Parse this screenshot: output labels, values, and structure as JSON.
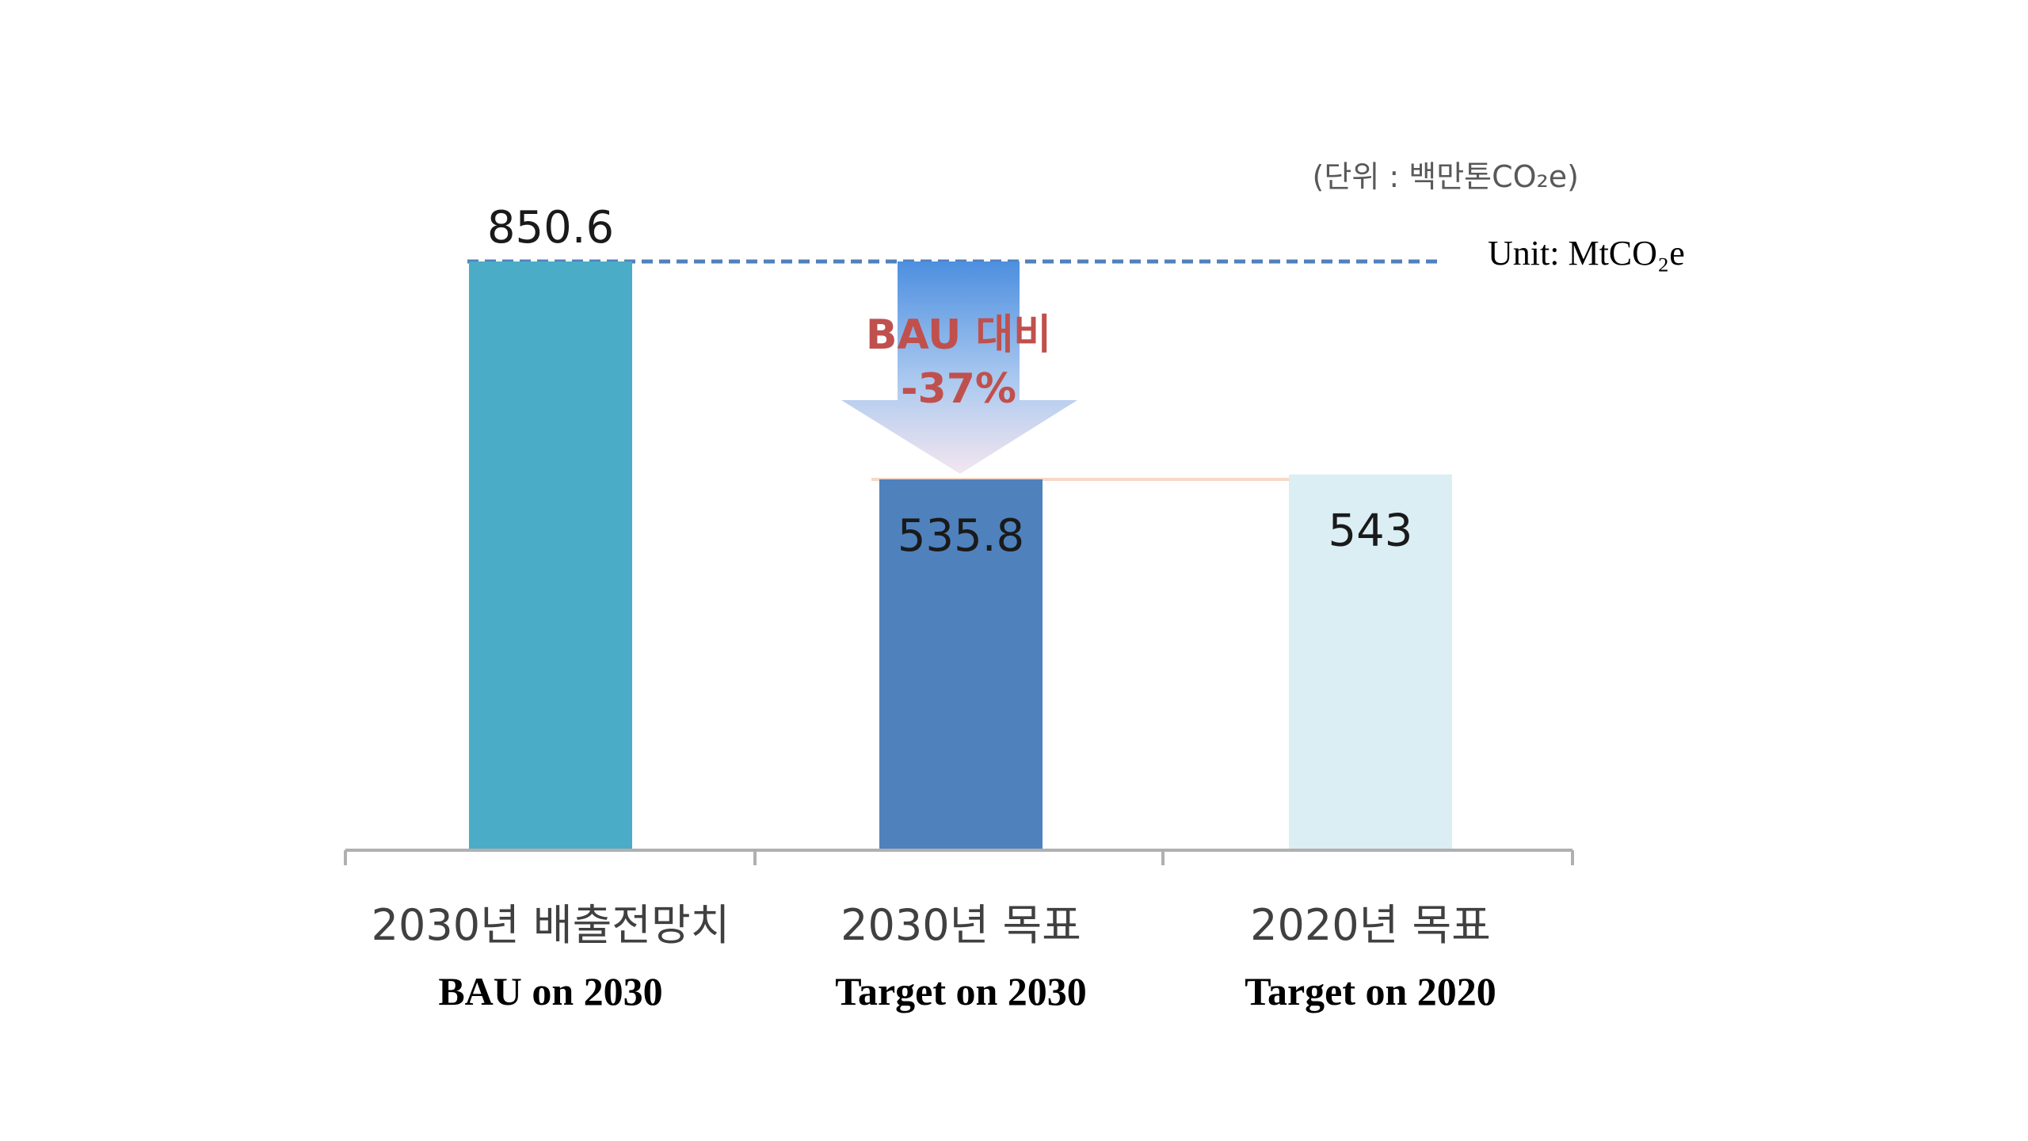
{
  "chart_data": {
    "type": "bar",
    "categories": [
      {
        "label_kr": "2030년 배출전망치",
        "label_en": "BAU on 2030"
      },
      {
        "label_kr": "2030년 목표",
        "label_en": "Target on 2030"
      },
      {
        "label_kr": "2020년 목표",
        "label_en": "Target on 2020"
      }
    ],
    "values": [
      850.6,
      535.8,
      543
    ],
    "value_labels": [
      "850.6",
      "535.8",
      "543"
    ],
    "unit_kr": "(단위 : 백만톤CO₂e)",
    "unit_en": "Unit: MtCO₂e",
    "reduction_annotation": {
      "line1": "BAU 대비",
      "line2": "-37%"
    },
    "ylim": [
      0,
      850.6
    ],
    "grid": false,
    "colors": {
      "bau": "#4aacc6",
      "target_2030": "#4f81bd",
      "target_2020": "#daeef3",
      "annotation_text": "#c0504d",
      "dashed_line": "#4f81bd",
      "axis": "#b0b0b0"
    }
  }
}
